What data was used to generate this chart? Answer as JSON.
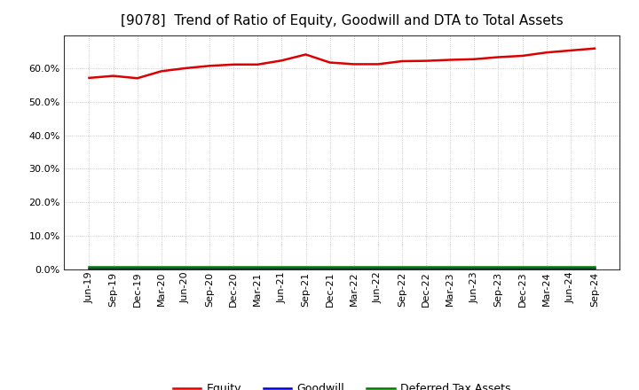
{
  "title": "[9078]  Trend of Ratio of Equity, Goodwill and DTA to Total Assets",
  "title_fontsize": 11,
  "background_color": "#ffffff",
  "plot_bg_color": "#ffffff",
  "grid_color": "#aaaaaa",
  "ylim": [
    0.0,
    0.7
  ],
  "yticks": [
    0.0,
    0.1,
    0.2,
    0.3,
    0.4,
    0.5,
    0.6
  ],
  "labels": [
    "Jun-19",
    "Sep-19",
    "Dec-19",
    "Mar-20",
    "Jun-20",
    "Sep-20",
    "Dec-20",
    "Mar-21",
    "Jun-21",
    "Sep-21",
    "Dec-21",
    "Mar-22",
    "Jun-22",
    "Sep-22",
    "Dec-22",
    "Mar-23",
    "Jun-23",
    "Sep-23",
    "Dec-23",
    "Mar-24",
    "Jun-24",
    "Sep-24"
  ],
  "equity": [
    0.572,
    0.578,
    0.571,
    0.592,
    0.601,
    0.608,
    0.612,
    0.612,
    0.624,
    0.642,
    0.618,
    0.613,
    0.613,
    0.622,
    0.623,
    0.626,
    0.628,
    0.634,
    0.638,
    0.648,
    0.654,
    0.66
  ],
  "goodwill": [
    0.001,
    0.001,
    0.001,
    0.001,
    0.001,
    0.001,
    0.001,
    0.001,
    0.001,
    0.001,
    0.001,
    0.001,
    0.001,
    0.001,
    0.001,
    0.001,
    0.001,
    0.001,
    0.001,
    0.001,
    0.001,
    0.001
  ],
  "dta": [
    0.008,
    0.008,
    0.008,
    0.008,
    0.008,
    0.008,
    0.008,
    0.008,
    0.008,
    0.008,
    0.008,
    0.008,
    0.008,
    0.008,
    0.008,
    0.008,
    0.008,
    0.008,
    0.008,
    0.008,
    0.008,
    0.008
  ],
  "equity_color": "#dd0000",
  "goodwill_color": "#0000cc",
  "dta_color": "#007700",
  "line_width": 1.8,
  "legend_labels": [
    "Equity",
    "Goodwill",
    "Deferred Tax Assets"
  ],
  "tick_fontsize": 8,
  "ytick_fontsize": 8
}
